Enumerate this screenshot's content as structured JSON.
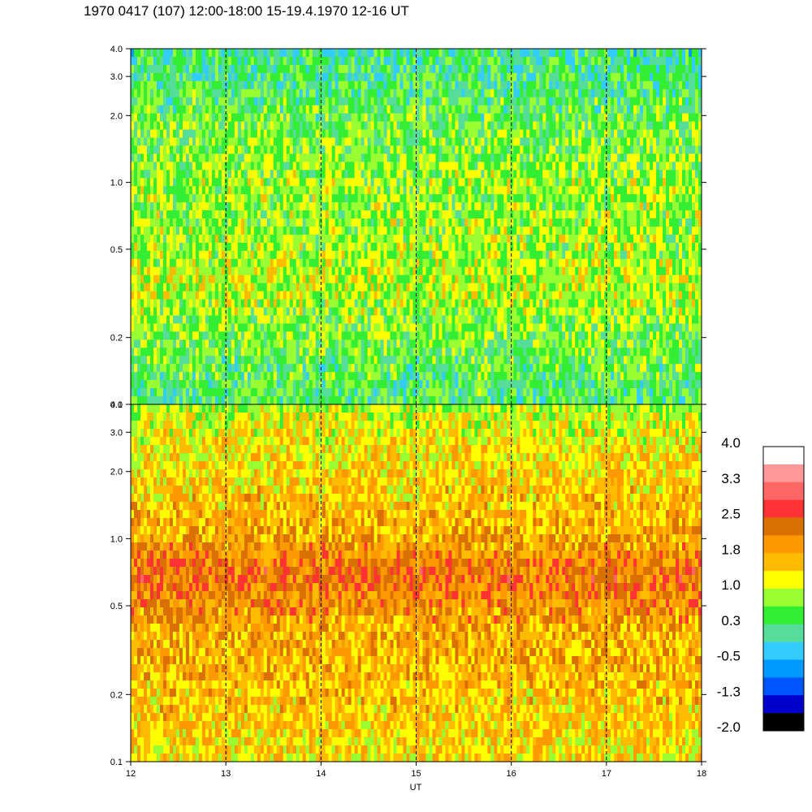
{
  "title": "1970 0417 (107) 12:00-18:00 15-19.4.1970  12-16 UT",
  "chart_data": {
    "type": "heatmap",
    "title": "1970 0417 (107) 12:00-18:00 15-19.4.1970  12-16 UT",
    "xlabel": "UT",
    "xlim": [
      12,
      18
    ],
    "x_ticks": [
      12,
      13,
      14,
      15,
      16,
      17,
      18
    ],
    "x_tick_labels": [
      "12",
      "13",
      "14",
      "15",
      "16",
      "17",
      "18"
    ],
    "dashed_vlines": [
      13,
      14,
      15,
      16,
      17
    ],
    "panels": [
      {
        "name": "upper",
        "ylabel": "",
        "yscale": "log",
        "ylim": [
          0.1,
          4.0
        ],
        "y_ticks": [
          0.1,
          0.2,
          0.5,
          1.0,
          2.0,
          3.0,
          4.0
        ],
        "y_tick_labels": [
          "0.1",
          "0.2",
          "0.5",
          "1.0",
          "2.0",
          "3.0",
          "4.0"
        ],
        "level_profile": [
          {
            "y": 0.1,
            "level": 0.3
          },
          {
            "y": 0.2,
            "level": 0.6
          },
          {
            "y": 0.35,
            "level": 1.0
          },
          {
            "y": 0.5,
            "level": 0.8
          },
          {
            "y": 1.0,
            "level": 0.8
          },
          {
            "y": 2.0,
            "level": 0.5
          },
          {
            "y": 4.0,
            "level": 0.1
          }
        ]
      },
      {
        "name": "lower",
        "ylabel": "",
        "yscale": "log",
        "ylim": [
          0.1,
          4.0
        ],
        "y_ticks": [
          0.1,
          0.2,
          0.5,
          1.0,
          2.0,
          3.0,
          4.0
        ],
        "y_tick_labels": [
          "0.1",
          "0.2",
          "0.5",
          "1.0",
          "2.0",
          "3.0",
          "4.0"
        ],
        "level_profile": [
          {
            "y": 0.1,
            "level": 1.3
          },
          {
            "y": 0.2,
            "level": 1.6
          },
          {
            "y": 0.4,
            "level": 1.8
          },
          {
            "y": 0.7,
            "level": 2.3
          },
          {
            "y": 1.0,
            "level": 1.8
          },
          {
            "y": 2.0,
            "level": 1.4
          },
          {
            "y": 3.5,
            "level": 1.1
          },
          {
            "y": 4.0,
            "level": 0.8
          }
        ]
      }
    ],
    "colorbar": {
      "range": [
        -2.0,
        4.0
      ],
      "tick_labels": [
        "4.0",
        "3.3",
        "2.5",
        "1.8",
        "1.0",
        "0.3",
        "-0.5",
        "-1.3",
        "-2.0"
      ],
      "colors": [
        "#ffffff",
        "#ff9999",
        "#ff6666",
        "#ff3333",
        "#d97000",
        "#ff9900",
        "#ffbb00",
        "#ffff00",
        "#99ff33",
        "#33ee33",
        "#55dd99",
        "#33ccff",
        "#0099ff",
        "#0055ff",
        "#0000cc",
        "#000000"
      ]
    }
  }
}
